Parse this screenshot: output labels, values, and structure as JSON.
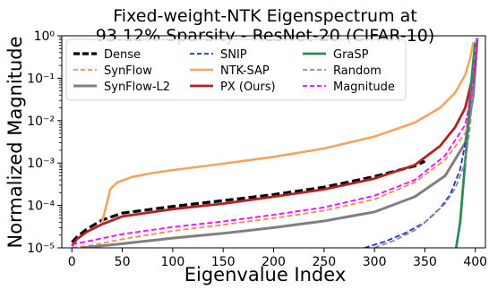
{
  "chart_data": {
    "type": "line",
    "title_line1": "Fixed-weight-NTK Eigenspectrum at",
    "title_line2": "93.12% Sparsity - ResNet-20 (CIFAR-10)",
    "xlabel": "Eigenvalue Index",
    "ylabel": "Normalized Magnitude",
    "xlim": [
      -10,
      410
    ],
    "ylim": [
      1e-05,
      1
    ],
    "yscale": "log",
    "grid": false,
    "legend_position": "top-left",
    "x_ticks": [
      0,
      50,
      100,
      150,
      200,
      250,
      300,
      350,
      400
    ],
    "x_tick_labels": [
      "0",
      "50",
      "100",
      "150",
      "200",
      "250",
      "300",
      "350",
      "400"
    ],
    "y_ticks": [
      1e-05,
      0.0001,
      0.001,
      0.01,
      0.1,
      1
    ],
    "y_tick_labels": [
      "10⁻⁵",
      "10⁻⁴",
      "10⁻³",
      "10⁻²",
      "10⁻¹",
      "10⁰"
    ],
    "series": [
      {
        "name": "Dense",
        "color": "#000000",
        "dash": "dashed",
        "width": 3.2,
        "points": [
          [
            0,
            1.35e-05
          ],
          [
            5,
            1.8e-05
          ],
          [
            15,
            2.8e-05
          ],
          [
            30,
            4.5e-05
          ],
          [
            50,
            6.6e-05
          ],
          [
            100,
            9.5e-05
          ],
          [
            150,
            0.00013
          ],
          [
            200,
            0.00018
          ],
          [
            250,
            0.00027
          ],
          [
            300,
            0.00048
          ],
          [
            340,
            0.00085
          ],
          [
            350,
            0.0011
          ]
        ]
      },
      {
        "name": "SynFlow",
        "color": "#f08a5d",
        "dash": "dashed",
        "width": 1.8,
        "points": [
          [
            0,
            1e-05
          ],
          [
            20,
            1.15e-05
          ],
          [
            50,
            1.6e-05
          ],
          [
            100,
            2.5e-05
          ],
          [
            150,
            3.5e-05
          ],
          [
            200,
            5e-05
          ],
          [
            250,
            7.5e-05
          ],
          [
            300,
            0.00014
          ],
          [
            340,
            0.00035
          ],
          [
            370,
            0.0012
          ],
          [
            390,
            0.005
          ],
          [
            398,
            0.05
          ],
          [
            402,
            0.8
          ]
        ]
      },
      {
        "name": "SynFlow-L2",
        "color": "#808080",
        "dash": "solid",
        "width": 3.0,
        "points": [
          [
            10,
            1e-05
          ],
          [
            50,
            1.25e-05
          ],
          [
            100,
            1.7e-05
          ],
          [
            150,
            2.2e-05
          ],
          [
            200,
            3e-05
          ],
          [
            250,
            4.3e-05
          ],
          [
            300,
            7e-05
          ],
          [
            340,
            0.00016
          ],
          [
            370,
            0.0005
          ],
          [
            390,
            0.003
          ],
          [
            398,
            0.04
          ],
          [
            402,
            0.9
          ]
        ]
      },
      {
        "name": "SNIP",
        "color": "#1f2fd8",
        "dash": "dashed",
        "width": 1.8,
        "points": [
          [
            290,
            1e-05
          ],
          [
            310,
            1.4e-05
          ],
          [
            330,
            2.2e-05
          ],
          [
            350,
            4e-05
          ],
          [
            365,
            8.5e-05
          ],
          [
            375,
            0.00018
          ],
          [
            385,
            0.0007
          ],
          [
            392,
            0.005
          ],
          [
            397,
            0.05
          ],
          [
            401,
            0.3
          ]
        ]
      },
      {
        "name": "NTK-SAP",
        "color": "#f4a460",
        "dash": "solid",
        "width": 2.6,
        "points": [
          [
            30,
            4e-05
          ],
          [
            35,
            0.00012
          ],
          [
            38,
            0.00024
          ],
          [
            45,
            0.00035
          ],
          [
            60,
            0.00047
          ],
          [
            80,
            0.00058
          ],
          [
            100,
            0.00068
          ],
          [
            150,
            0.00096
          ],
          [
            200,
            0.0014
          ],
          [
            250,
            0.0022
          ],
          [
            300,
            0.0042
          ],
          [
            340,
            0.009
          ],
          [
            365,
            0.02
          ],
          [
            380,
            0.045
          ],
          [
            390,
            0.12
          ],
          [
            395,
            0.3
          ],
          [
            398,
            0.7
          ]
        ]
      },
      {
        "name": "PX (Ours)",
        "color": "#b22222",
        "dash": "solid",
        "width": 2.8,
        "points": [
          [
            0,
            1.1e-05
          ],
          [
            5,
            1.6e-05
          ],
          [
            15,
            2.4e-05
          ],
          [
            30,
            3.6e-05
          ],
          [
            50,
            5.5e-05
          ],
          [
            100,
            8.2e-05
          ],
          [
            150,
            0.00011
          ],
          [
            200,
            0.00016
          ],
          [
            250,
            0.00024
          ],
          [
            300,
            0.00043
          ],
          [
            340,
            0.0009
          ],
          [
            365,
            0.0025
          ],
          [
            380,
            0.007
          ],
          [
            390,
            0.02
          ],
          [
            397,
            0.1
          ],
          [
            401,
            0.6
          ]
        ]
      },
      {
        "name": "GraSP",
        "color": "#2e8b57",
        "dash": "solid",
        "width": 2.8,
        "points": [
          [
            381,
            1e-05
          ],
          [
            385,
            4e-05
          ],
          [
            388,
            0.0003
          ],
          [
            391,
            0.002
          ],
          [
            394,
            0.02
          ],
          [
            397,
            0.15
          ],
          [
            400,
            0.7
          ]
        ]
      },
      {
        "name": "Random",
        "color": "#8c8c8c",
        "dash": "dashed",
        "width": 1.8,
        "points": [
          [
            300,
            1e-05
          ],
          [
            320,
            1.5e-05
          ],
          [
            340,
            2.6e-05
          ],
          [
            355,
            5e-05
          ],
          [
            370,
            0.00011
          ],
          [
            380,
            0.00025
          ],
          [
            390,
            0.001
          ],
          [
            395,
            0.008
          ],
          [
            398,
            0.1
          ],
          [
            401,
            0.9
          ]
        ]
      },
      {
        "name": "Magnitude",
        "color": "#ff00ff",
        "dash": "dashed",
        "width": 1.8,
        "points": [
          [
            0,
            1.2e-05
          ],
          [
            20,
            1.5e-05
          ],
          [
            50,
            2.1e-05
          ],
          [
            100,
            3.1e-05
          ],
          [
            150,
            4.2e-05
          ],
          [
            200,
            6e-05
          ],
          [
            250,
            9e-05
          ],
          [
            300,
            0.00017
          ],
          [
            340,
            0.0004
          ],
          [
            370,
            0.0015
          ],
          [
            390,
            0.008
          ],
          [
            398,
            0.08
          ],
          [
            402,
            0.8
          ]
        ]
      }
    ]
  }
}
